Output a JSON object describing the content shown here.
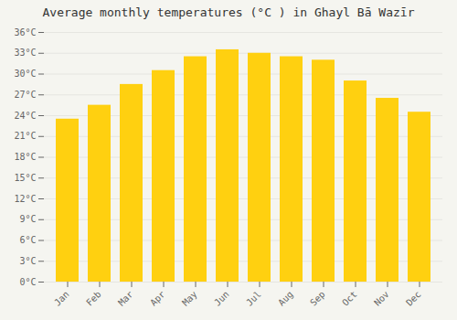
{
  "chart_data": {
    "type": "bar",
    "title": "Average monthly temperatures (°C ) in Ghayl Bā  Wazīr",
    "categories": [
      "Jan",
      "Feb",
      "Mar",
      "Apr",
      "May",
      "Jun",
      "Jul",
      "Aug",
      "Sep",
      "Oct",
      "Nov",
      "Dec"
    ],
    "values": [
      23.5,
      25.5,
      28.5,
      30.5,
      32.5,
      33.5,
      33.0,
      32.5,
      32.0,
      29.0,
      26.5,
      24.5
    ],
    "color": "#FFD010",
    "ylim": [
      0,
      36
    ],
    "yticks": [
      {
        "value": 0,
        "label": "0°C"
      },
      {
        "value": 3,
        "label": "3°C"
      },
      {
        "value": 6,
        "label": "6°C"
      },
      {
        "value": 9,
        "label": "9°C"
      },
      {
        "value": 12,
        "label": "12°C"
      },
      {
        "value": 15,
        "label": "15°C"
      },
      {
        "value": 18,
        "label": "18°C"
      },
      {
        "value": 21,
        "label": "21°C"
      },
      {
        "value": 24,
        "label": "24°C"
      },
      {
        "value": 27,
        "label": "27°C"
      },
      {
        "value": 30,
        "label": "30°C"
      },
      {
        "value": 33,
        "label": "33°C"
      },
      {
        "value": 36,
        "label": "36°C"
      }
    ],
    "grid": true
  }
}
